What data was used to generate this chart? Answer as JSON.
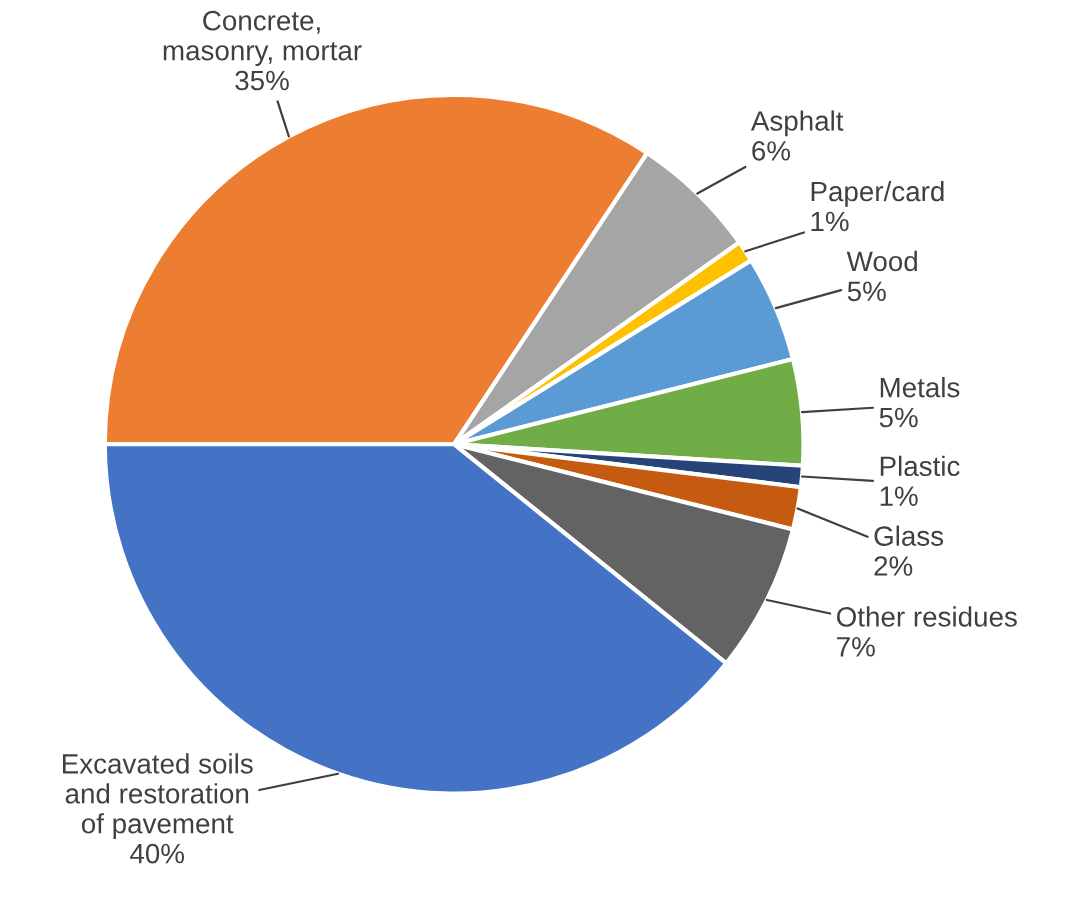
{
  "chart_data": {
    "type": "pie",
    "categories": [
      "Concrete,\nmasonry, mortar",
      "Asphalt",
      "Paper/card",
      "Wood",
      "Metals",
      "Plastic",
      "Glass",
      "Other residues",
      "Excavated soils\nand restoration\nof pavement"
    ],
    "values": [
      35,
      6,
      1,
      5,
      5,
      1,
      2,
      7,
      40
    ],
    "colors": [
      "#ed7d31",
      "#a5a5a5",
      "#ffc000",
      "#5b9bd5",
      "#70ad47",
      "#264478",
      "#c55a11",
      "#636363",
      "#4472c4"
    ],
    "value_labels": [
      "35%",
      "6%",
      "1%",
      "5%",
      "5%",
      "1%",
      "2%",
      "7%",
      "40%"
    ],
    "legend": false
  }
}
